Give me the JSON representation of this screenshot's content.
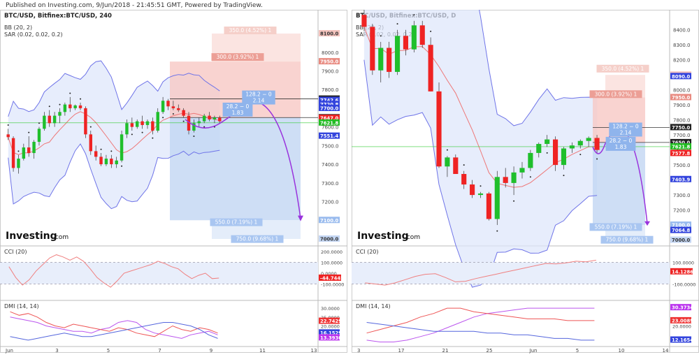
{
  "header": "Published on Investing.com, 9/Jun/2018 - 21:45:51 GMT, Powered by TradingView.",
  "colors": {
    "up": "#1fbf2c",
    "down": "#ef2323",
    "band": "#6f74e8",
    "bandFill": "#dde6fb",
    "sar": "#222222",
    "pinkZone": "#f7c8c4",
    "pinkLight": "#fbe4e1",
    "blueZone": "#c2d6f3",
    "cci": "#f08080",
    "dmiRed": "#ee5555",
    "dmiViolet": "#bb55ee",
    "dmiBlue": "#5566dd",
    "path": "#9933dd",
    "green": "#33cc33"
  },
  "charts": [
    {
      "symbol_label": "BTC/USD, Bitfinex:BTC/USD, 240",
      "legend": [
        "BB (20, 2)",
        "SAR (0.02, 0.02, 0.2)"
      ],
      "cci_label": "CCI (20)",
      "dmi_label": "DMI (14, 14)",
      "logo": "Investing",
      "logo_suffix": ".com",
      "price_axis": [
        "8100.0",
        "8000.0",
        "7900.0",
        "7800.0",
        "7700.0",
        "7600.0",
        "7500.0",
        "7400.0",
        "7300.0",
        "7200.0",
        "7100.0",
        "7000.0"
      ],
      "price_tags": [
        {
          "text": "8100.0",
          "color": "#f3c2bc",
          "fg": "#333"
        },
        {
          "text": "7950.0",
          "color": "#e88a80",
          "fg": "#fff"
        },
        {
          "text": "7750.0",
          "color": "#222",
          "fg": "#fff"
        },
        {
          "text": "7742.6",
          "color": "#3344dd",
          "fg": "#fff"
        },
        {
          "text": "7720.8",
          "color": "#3344dd",
          "fg": "#fff"
        },
        {
          "text": "7700.0",
          "color": "#3344dd",
          "fg": "#fff"
        },
        {
          "text": "7650.0",
          "color": "#222",
          "fg": "#fff"
        },
        {
          "text": "7647.0",
          "color": "#ee2222",
          "fg": "#fff"
        },
        {
          "text": "7621.8",
          "color": "#22bb22",
          "fg": "#fff"
        },
        {
          "text": "7551.4",
          "color": "#3344dd",
          "fg": "#fff"
        },
        {
          "text": "7100.0",
          "color": "#99bbee",
          "fg": "#fff"
        },
        {
          "text": "7000.0",
          "color": "#c4d6f3",
          "fg": "#333"
        }
      ],
      "zone_labels": [
        {
          "text": "350.0 (4.52%) 1",
          "kind": "pinkLight"
        },
        {
          "text": "300.0 (3.92%) 1",
          "kind": "pink"
        },
        {
          "text": "128.2 − 0",
          "sub": "2.14",
          "kind": "blue"
        },
        {
          "text": "28.2 − 0",
          "sub": "1.83",
          "kind": "blue"
        },
        {
          "text": "550.0 (7.19%) 1",
          "kind": "blueLight"
        },
        {
          "text": "750.0 (9.68%) 1",
          "kind": "blueLight"
        }
      ],
      "cci_axis": [
        "200.0000",
        "100.0000",
        "0.0000",
        "-100.0000"
      ],
      "cci_tag": "-44.7445",
      "dmi_axis": [
        "30.0000",
        "25.0000",
        "20.0000"
      ],
      "dmi_tags": [
        {
          "text": "22.7429",
          "color": "#ee3333"
        },
        {
          "text": "16.1529",
          "color": "#3344dd"
        },
        {
          "text": "13.3930",
          "color": "#bb33ee"
        }
      ],
      "x_axis": [
        "Jun",
        "3",
        "5",
        "7",
        "9",
        "11",
        "13"
      ]
    },
    {
      "symbol_label": "BTC/USD, Bitfinex:BTC/USD, D",
      "legend": [
        "BB (20, 2)",
        "SAR (0.02, 0.02, 0.2)"
      ],
      "cci_label": "CCI (20)",
      "dmi_label": "DMI (14, 14)",
      "logo": "Investing",
      "logo_suffix": ".com",
      "price_axis": [
        "8400.0",
        "8300.0",
        "8200.0",
        "8100.0",
        "8000.0",
        "7900.0",
        "7800.0",
        "7700.0",
        "7600.0",
        "7500.0",
        "7400.0",
        "7300.0",
        "7200.0",
        "7100.0",
        "7000.0"
      ],
      "price_tags": [
        {
          "text": "8100.0",
          "color": "#f3c2bc",
          "fg": "#333"
        },
        {
          "text": "8090.0",
          "color": "#3344dd",
          "fg": "#fff"
        },
        {
          "text": "7950.0",
          "color": "#e88a80",
          "fg": "#fff"
        },
        {
          "text": "7750.0",
          "color": "#222",
          "fg": "#fff"
        },
        {
          "text": "7650.0",
          "color": "#222",
          "fg": "#fff"
        },
        {
          "text": "7621.8",
          "color": "#22bb22",
          "fg": "#fff"
        },
        {
          "text": "7577.8",
          "color": "#ee2222",
          "fg": "#fff"
        },
        {
          "text": "7403.9",
          "color": "#3344dd",
          "fg": "#fff"
        },
        {
          "text": "7100.0",
          "color": "#99bbee",
          "fg": "#fff"
        },
        {
          "text": "7064.8",
          "color": "#3344dd",
          "fg": "#fff"
        },
        {
          "text": "7000.0",
          "color": "#c4d6f3",
          "fg": "#333"
        }
      ],
      "zone_labels": [
        {
          "text": "350.0 (4.52%) 1",
          "kind": "pinkLight"
        },
        {
          "text": "300.0 (3.92%) 1",
          "kind": "pink"
        },
        {
          "text": "128.2 − 0",
          "sub": "2.14",
          "kind": "blue"
        },
        {
          "text": "28.2 − 0",
          "sub": "1.83",
          "kind": "blue"
        },
        {
          "text": "550.0 (7.19%) 1",
          "kind": "blueLight"
        },
        {
          "text": "750.0 (9.68%) 1",
          "kind": "blueLight"
        }
      ],
      "cci_axis": [
        "100.0000",
        "-100.0000"
      ],
      "cci_tag": "14.1286",
      "dmi_axis": [
        "20.0000"
      ],
      "dmi_tags": [
        {
          "text": "30.3734",
          "color": "#bb33ee"
        },
        {
          "text": "23.0089",
          "color": "#ee3333"
        },
        {
          "text": "12.1654",
          "color": "#3344dd"
        }
      ],
      "x_axis": [
        "3",
        "17",
        "21",
        "25",
        "Jun",
        "5",
        "10",
        "14"
      ]
    }
  ],
  "chart_data": [
    {
      "type": "candlestick",
      "title": "BTC/USD, Bitfinex:BTC/USD, 240",
      "ylim": [
        6970,
        8160
      ],
      "candles": [
        [
          7560,
          7590,
          7530,
          7545
        ],
        [
          7540,
          7550,
          7360,
          7380
        ],
        [
          7380,
          7450,
          7350,
          7430
        ],
        [
          7430,
          7510,
          7420,
          7490
        ],
        [
          7490,
          7550,
          7440,
          7460
        ],
        [
          7460,
          7530,
          7430,
          7520
        ],
        [
          7520,
          7600,
          7500,
          7590
        ],
        [
          7590,
          7680,
          7580,
          7660
        ],
        [
          7660,
          7690,
          7600,
          7620
        ],
        [
          7620,
          7680,
          7600,
          7660
        ],
        [
          7660,
          7700,
          7620,
          7680
        ],
        [
          7680,
          7730,
          7660,
          7720
        ],
        [
          7720,
          7760,
          7680,
          7700
        ],
        [
          7700,
          7720,
          7690,
          7715
        ],
        [
          7715,
          7730,
          7690,
          7700
        ],
        [
          7700,
          7710,
          7540,
          7560
        ],
        [
          7560,
          7580,
          7450,
          7470
        ],
        [
          7470,
          7500,
          7420,
          7440
        ],
        [
          7440,
          7460,
          7390,
          7400
        ],
        [
          7400,
          7450,
          7390,
          7430
        ],
        [
          7430,
          7450,
          7380,
          7400
        ],
        [
          7400,
          7440,
          7380,
          7420
        ],
        [
          7420,
          7580,
          7410,
          7560
        ],
        [
          7560,
          7640,
          7540,
          7620
        ],
        [
          7620,
          7650,
          7580,
          7600
        ],
        [
          7600,
          7640,
          7590,
          7630
        ],
        [
          7630,
          7660,
          7590,
          7610
        ],
        [
          7610,
          7640,
          7590,
          7630
        ],
        [
          7630,
          7650,
          7560,
          7580
        ],
        [
          7580,
          7700,
          7570,
          7680
        ],
        [
          7680,
          7760,
          7670,
          7740
        ],
        [
          7740,
          7750,
          7690,
          7710
        ],
        [
          7710,
          7740,
          7690,
          7700
        ],
        [
          7700,
          7720,
          7680,
          7690
        ],
        [
          7690,
          7700,
          7650,
          7660
        ],
        [
          7660,
          7680,
          7560,
          7580
        ],
        [
          7580,
          7640,
          7570,
          7620
        ],
        [
          7620,
          7650,
          7600,
          7630
        ],
        [
          7630,
          7670,
          7620,
          7660
        ],
        [
          7660,
          7680,
          7630,
          7640
        ],
        [
          7640,
          7660,
          7620,
          7650
        ],
        [
          7650,
          7660,
          7620,
          7630
        ]
      ],
      "cci_values": [
        60,
        -40,
        -110,
        -60,
        20,
        80,
        140,
        170,
        150,
        120,
        150,
        110,
        40,
        -40,
        -90,
        -130,
        -70,
        0,
        20,
        40,
        60,
        80,
        110,
        90,
        60,
        40,
        -10,
        -50,
        -20,
        0,
        -50,
        -45
      ],
      "dmi": {
        "plus_di": [
          25,
          24,
          23,
          22,
          20,
          19,
          18,
          17,
          17,
          16,
          18,
          19,
          22,
          23,
          22,
          18,
          16,
          15,
          14,
          13,
          15,
          16,
          17,
          15
        ],
        "minus_di": [
          28,
          26,
          27,
          25,
          22,
          20,
          19,
          21,
          20,
          19,
          18,
          17,
          19,
          18,
          16,
          15,
          14,
          17,
          20,
          18,
          17,
          19,
          18,
          16
        ],
        "adx": [
          14,
          13,
          12,
          13,
          14,
          15,
          16,
          15,
          14,
          14,
          15,
          16,
          17,
          18,
          19,
          20,
          21,
          22,
          22,
          21,
          20,
          18,
          15,
          13
        ]
      }
    },
    {
      "type": "candlestick",
      "title": "BTC/USD, Bitfinex:BTC/USD, D",
      "ylim": [
        6970,
        8450
      ],
      "candles": [
        [
          8500,
          8600,
          8390,
          8420
        ],
        [
          8420,
          8440,
          8100,
          8130
        ],
        [
          8130,
          8320,
          8050,
          8280
        ],
        [
          8280,
          8320,
          8080,
          8120
        ],
        [
          8120,
          8400,
          8100,
          8360
        ],
        [
          8360,
          8400,
          8230,
          8270
        ],
        [
          8270,
          8460,
          8250,
          8430
        ],
        [
          8430,
          8460,
          8280,
          8300
        ],
        [
          8300,
          8350,
          7990,
          7990
        ],
        [
          7990,
          8050,
          7480,
          7490
        ],
        [
          7490,
          7560,
          7420,
          7550
        ],
        [
          7550,
          7570,
          7440,
          7440
        ],
        [
          7440,
          7460,
          7340,
          7370
        ],
        [
          7370,
          7400,
          7280,
          7300
        ],
        [
          7300,
          7320,
          7280,
          7310
        ],
        [
          7310,
          7320,
          7130,
          7140
        ],
        [
          7140,
          7460,
          7100,
          7420
        ],
        [
          7420,
          7480,
          7350,
          7380
        ],
        [
          7380,
          7490,
          7300,
          7450
        ],
        [
          7450,
          7520,
          7410,
          7480
        ],
        [
          7480,
          7600,
          7460,
          7580
        ],
        [
          7580,
          7650,
          7550,
          7640
        ],
        [
          7640,
          7700,
          7620,
          7670
        ],
        [
          7670,
          7690,
          7460,
          7500
        ],
        [
          7500,
          7620,
          7470,
          7610
        ],
        [
          7610,
          7650,
          7580,
          7630
        ],
        [
          7630,
          7670,
          7610,
          7660
        ],
        [
          7660,
          7690,
          7620,
          7680
        ],
        [
          7680,
          7700,
          7580,
          7600
        ]
      ],
      "cci_values": [
        -90,
        -100,
        -110,
        -90,
        -60,
        -30,
        -10,
        -5,
        -40,
        -80,
        -75,
        -50,
        -30,
        -10,
        10,
        30,
        50,
        70,
        90,
        85,
        95,
        110,
        105,
        120
      ],
      "dmi": {
        "plus_di": [
          12,
          11,
          11,
          12,
          14,
          16,
          19,
          22,
          25,
          27,
          28,
          29,
          30,
          30,
          30,
          30,
          30,
          30
        ],
        "minus_di": [
          16,
          18,
          20,
          22,
          25,
          27,
          30,
          30,
          28,
          27,
          26,
          25,
          24,
          24,
          24,
          23,
          23,
          23
        ],
        "adx": [
          22,
          21,
          20,
          19,
          18,
          17,
          17,
          17,
          17,
          16,
          16,
          15,
          15,
          14,
          13,
          13,
          12,
          12
        ]
      }
    }
  ]
}
